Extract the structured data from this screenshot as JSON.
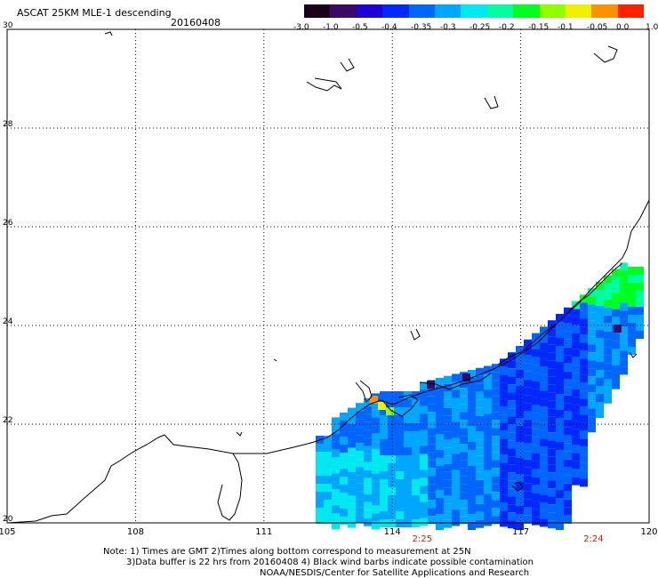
{
  "header": {
    "title": "ASCAT 25KM MLE-1 descending",
    "date": "20160408"
  },
  "colorbar": {
    "labels": [
      "-3.0",
      "-1.0",
      "-0.5",
      "-0.4",
      "-0.35",
      "-0.3",
      "-0.25",
      "-0.2",
      "-0.15",
      "-0.1",
      "-0.05",
      "0.0",
      "1.0"
    ],
    "colors": [
      "#1a0018",
      "#3a0a66",
      "#2000d8",
      "#0028ff",
      "#0066ff",
      "#00a6ff",
      "#00e8f0",
      "#00ffa0",
      "#00ff20",
      "#90ff00",
      "#f0f000",
      "#ff9000",
      "#ff2000"
    ]
  },
  "map": {
    "lon_range": [
      105,
      120
    ],
    "lat_range": [
      20,
      30
    ],
    "lon_labels": [
      "105",
      "108",
      "111",
      "114",
      "117",
      "120"
    ],
    "lat_labels": [
      "30",
      "28",
      "26",
      "24",
      "22",
      "20"
    ],
    "pass_times": [
      {
        "label": "2:25",
        "lon": 114.7
      },
      {
        "label": "2:24",
        "lon": 118.7
      }
    ]
  },
  "footer": {
    "line1": "Note: 1) Times are GMT 2)Times along bottom correspond to measurement at 25N",
    "line2": "3)Data buffer is 22 hrs from 20160408 4) Black wind barbs indicate possible contamination",
    "line3": "NOAA/NESDIS/Center for Satellite Applications and Research"
  }
}
